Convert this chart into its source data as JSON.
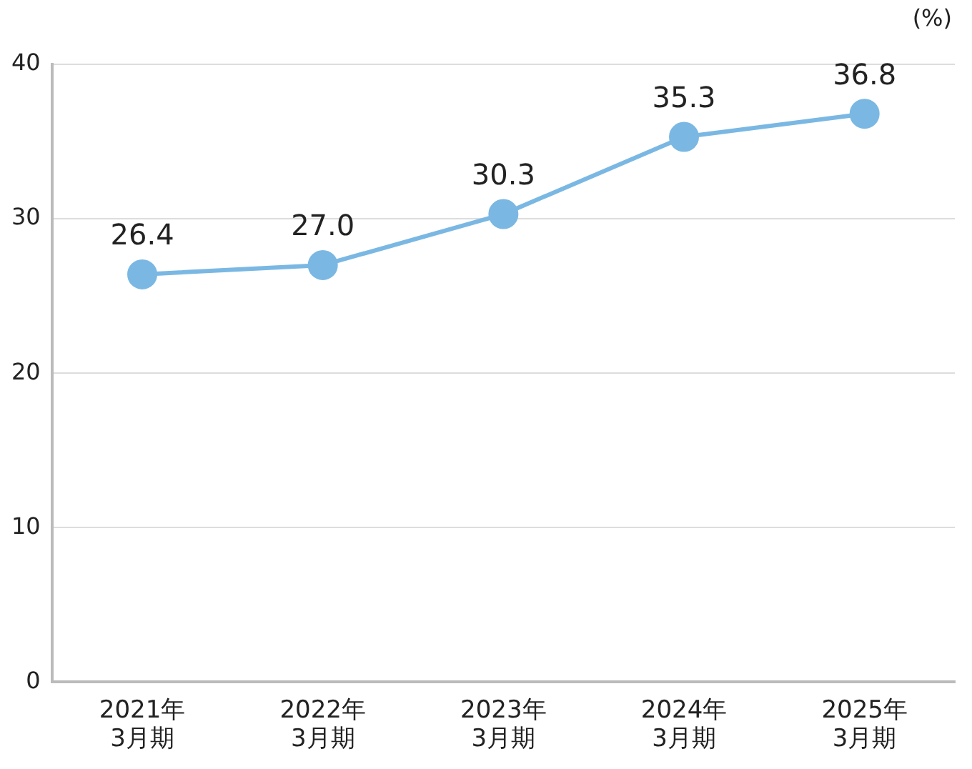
{
  "chart_data": {
    "type": "line",
    "ylabel": "(%)",
    "categories": [
      "2021年\n3月期",
      "2022年\n3月期",
      "2023年\n3月期",
      "2024年\n3月期",
      "2025年\n3月期"
    ],
    "series": [
      {
        "color": "#7ab8e3",
        "values": [
          26.4,
          27.0,
          30.3,
          35.3,
          36.8
        ],
        "value_labels": [
          "26.4",
          "27.0",
          "30.3",
          "35.3",
          "36.8"
        ]
      }
    ],
    "ylim": [
      0,
      40
    ],
    "yticks": [
      0,
      10,
      20,
      30,
      40
    ],
    "grid": "y",
    "legend": false,
    "marker": "circle",
    "line_style": "solid"
  }
}
